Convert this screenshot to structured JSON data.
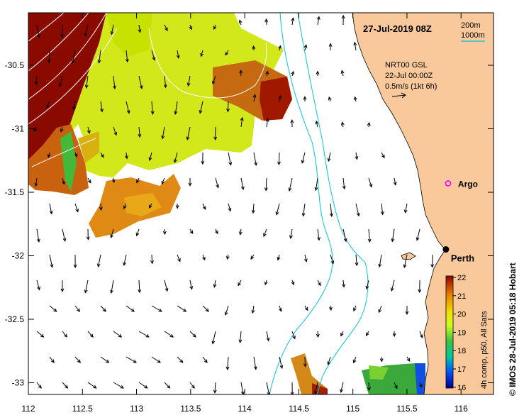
{
  "map": {
    "title": "27-Jul-2019 08Z",
    "depth_legend": [
      "200m",
      "1000m"
    ],
    "product_lines": [
      "NRT00 GSL",
      "22-Jul 00:00Z",
      "0.5m/s (1kt 6h)"
    ],
    "places": [
      {
        "name": "Argo",
        "lon": 115.88,
        "lat": -31.43
      },
      {
        "name": "Perth",
        "lon": 115.86,
        "lat": -31.95
      }
    ],
    "credit": "© IMOS 28-Jul-2019 05:18 Hobart",
    "colorbar_label": "4h comp, p50, All Sats",
    "colorbar_ticks": [
      "22",
      "21",
      "20",
      "19",
      "18",
      "17",
      "16"
    ],
    "lon_ticks": [
      "112",
      "112.5",
      "113",
      "113.5",
      "114",
      "114.5",
      "115",
      "115.5",
      "116"
    ],
    "lat_ticks": [
      "-30.5",
      "-31",
      "-31.5",
      "-32",
      "-32.5",
      "-33"
    ],
    "colors": {
      "land": "#f9c99c",
      "isobath": "#00c8d8",
      "marker_argo": "#ff00ff",
      "marker_perth": "#000000"
    }
  }
}
